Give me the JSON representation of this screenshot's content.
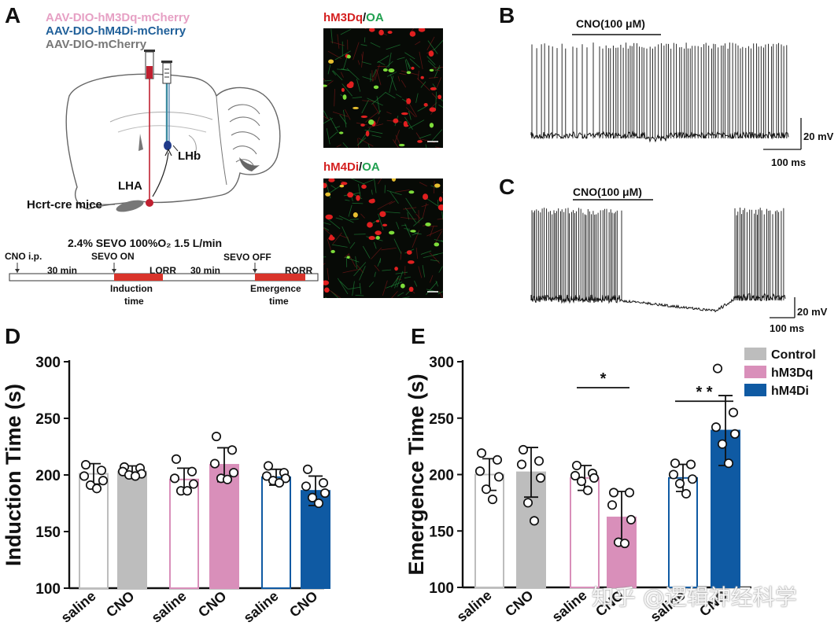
{
  "panels": {
    "a": "A",
    "b": "B",
    "c": "C",
    "d": "D",
    "e": "E"
  },
  "constructs": {
    "line1": "AAV-DIO-hM3Dq-mCherry",
    "line2": "AAV-DIO-hM4Di-mCherry",
    "line3": "AAV-DIO-mCherry",
    "color1": "#e6a0c4",
    "color2": "#1f5f99",
    "color3": "#777777"
  },
  "brain": {
    "lhb": "LHb",
    "lha": "LHA",
    "mouse": "Hcrt-cre mice"
  },
  "protocol": {
    "header": "2.4% SEVO  100%O₂ 1.5 L/min",
    "cno_ip": "CNO i.p.",
    "min1": "30 min",
    "sevo_on": "SEVO ON",
    "lorr": "LORR",
    "min2": "30 min",
    "sevo_off": "SEVO OFF",
    "rorr": "RORR",
    "induction1": "Induction",
    "induction2": "time",
    "emergence1": "Emergence",
    "emergence2": "time"
  },
  "micrographs": {
    "top_red": "hM3Dq",
    "top_sep": "/",
    "top_green": "OA",
    "bottom_red": "hM4Di",
    "bottom_sep": "/",
    "bottom_green": "OA"
  },
  "traces": {
    "b_label": "CNO(100 μM)",
    "b_scale_v": "20 mV",
    "b_scale_t": "100 ms",
    "c_label": "CNO(100 μM)",
    "c_scale_v": "20 mV",
    "c_scale_t": "100 ms"
  },
  "watermark": "知乎 @逻辑神经科学",
  "chart_data": [
    {
      "type": "bar",
      "panel": "D",
      "ylabel": "Induction Time (s)",
      "ylim": [
        100,
        300
      ],
      "yticks": [
        100,
        150,
        200,
        250,
        300
      ],
      "categories": [
        "saline",
        "CNO",
        "saline",
        "CNO",
        "saline",
        "CNO"
      ],
      "groups": [
        "Control",
        "Control",
        "hM3Dq",
        "hM3Dq",
        "hM4Di",
        "hM4Di"
      ],
      "filled": [
        false,
        true,
        false,
        true,
        false,
        true
      ],
      "values": [
        201,
        203,
        196,
        209,
        198,
        186
      ],
      "errors": [
        9,
        5,
        10,
        15,
        7,
        13
      ],
      "points": [
        [
          209,
          204,
          199,
          195,
          191,
          188
        ],
        [
          207,
          206,
          203,
          201,
          200,
          199
        ],
        [
          214,
          203,
          197,
          192,
          186,
          186
        ],
        [
          234,
          222,
          210,
          202,
          197,
          196
        ],
        [
          208,
          202,
          199,
          197,
          195,
          193
        ],
        [
          205,
          193,
          190,
          184,
          180,
          175
        ]
      ],
      "colors": {
        "Control": "#bdbdbd",
        "hM3Dq": "#d98fba",
        "hM4Di": "#0f5aa3"
      }
    },
    {
      "type": "bar",
      "panel": "E",
      "ylabel": "Emergence Time (s)",
      "ylim": [
        100,
        300
      ],
      "yticks": [
        100,
        150,
        200,
        250,
        300
      ],
      "categories": [
        "saline",
        "CNO",
        "saline",
        "CNO",
        "saline",
        "CNO"
      ],
      "groups": [
        "Control",
        "Control",
        "hM3Dq",
        "hM3Dq",
        "hM4Di",
        "hM4Di"
      ],
      "filled": [
        false,
        true,
        false,
        true,
        false,
        true
      ],
      "values": [
        200,
        202,
        197,
        162,
        197,
        239
      ],
      "errors": [
        14,
        22,
        11,
        23,
        12,
        31
      ],
      "points": [
        [
          219,
          213,
          203,
          198,
          187,
          178
        ],
        [
          222,
          212,
          209,
          197,
          175,
          159
        ],
        [
          208,
          201,
          199,
          197,
          194,
          186
        ],
        [
          184,
          184,
          173,
          160,
          140,
          139
        ],
        [
          210,
          209,
          200,
          196,
          192,
          183
        ],
        [
          294,
          255,
          242,
          236,
          227,
          210
        ]
      ],
      "significance": [
        {
          "from": 2,
          "to": 3,
          "label": "*",
          "y": 277
        },
        {
          "from": 4,
          "to": 5,
          "label": "* *",
          "y": 265
        }
      ],
      "legend": [
        "Control",
        "hM3Dq",
        "hM4Di"
      ],
      "legend_position": "top-right",
      "colors": {
        "Control": "#bdbdbd",
        "hM3Dq": "#d98fba",
        "hM4Di": "#0f5aa3"
      }
    }
  ]
}
